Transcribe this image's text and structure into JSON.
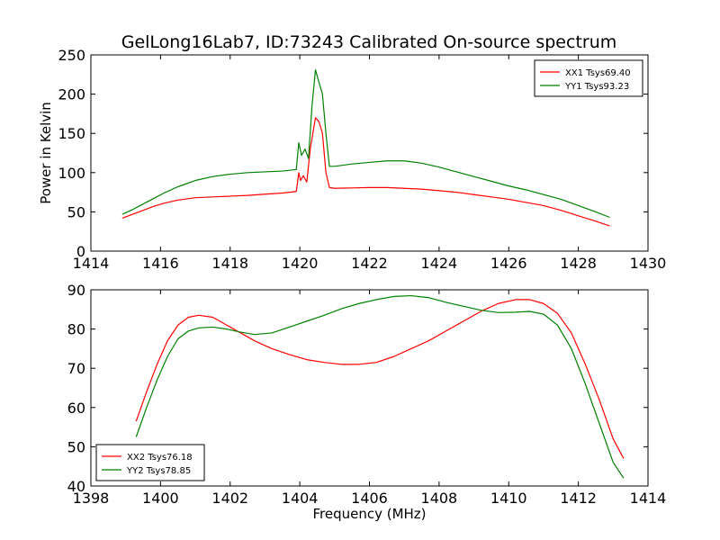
{
  "figure": {
    "title": "GelLong16Lab7, ID:73243 Calibrated On-source spectrum"
  },
  "chart_data": [
    {
      "type": "line",
      "title": "GelLong16Lab7, ID:73243 Calibrated On-source spectrum",
      "xlabel": "",
      "ylabel": "Power in Kelvin",
      "xlim": [
        1414,
        1430
      ],
      "ylim": [
        0,
        250
      ],
      "xticks": [
        "1414",
        "1416",
        "1418",
        "1420",
        "1422",
        "1424",
        "1426",
        "1428",
        "1430"
      ],
      "yticks": [
        "0",
        "50",
        "100",
        "150",
        "200",
        "250"
      ],
      "legend_position": "top-right",
      "grid": false,
      "series": [
        {
          "name": "XX1 Tsys69.40",
          "color": "#ff0000",
          "x": [
            1414.9,
            1415.2,
            1415.5,
            1415.8,
            1416.1,
            1416.5,
            1417.0,
            1417.5,
            1418.0,
            1418.5,
            1419.0,
            1419.5,
            1419.9,
            1419.97,
            1420.02,
            1420.1,
            1420.2,
            1420.3,
            1420.45,
            1420.55,
            1420.65,
            1420.75,
            1420.85,
            1421.0,
            1421.5,
            1422.0,
            1422.5,
            1423.0,
            1423.5,
            1424.0,
            1424.5,
            1425.0,
            1425.5,
            1426.0,
            1426.5,
            1427.0,
            1427.5,
            1428.0,
            1428.5,
            1428.9
          ],
          "values": [
            42,
            47,
            52,
            57,
            61,
            65,
            68,
            69,
            70,
            71,
            72.5,
            74,
            76,
            100,
            90,
            96,
            88,
            130,
            170,
            165,
            150,
            100,
            81,
            80,
            80.5,
            81,
            81,
            80,
            79,
            77,
            75,
            72,
            69,
            66,
            62,
            58,
            52,
            45,
            38,
            32
          ]
        },
        {
          "name": "YY1 Tsys93.23",
          "color": "#008000",
          "x": [
            1414.9,
            1415.2,
            1415.5,
            1415.8,
            1416.1,
            1416.5,
            1417.0,
            1417.5,
            1418.0,
            1418.5,
            1419.0,
            1419.5,
            1419.9,
            1419.97,
            1420.05,
            1420.15,
            1420.25,
            1420.35,
            1420.45,
            1420.55,
            1420.65,
            1420.75,
            1420.85,
            1421.0,
            1421.5,
            1422.0,
            1422.5,
            1423.0,
            1423.5,
            1424.0,
            1424.5,
            1425.0,
            1425.5,
            1426.0,
            1426.5,
            1427.0,
            1427.5,
            1428.0,
            1428.5,
            1428.9
          ],
          "values": [
            47,
            53,
            60,
            67,
            74,
            82,
            90,
            95,
            98,
            100,
            101,
            102,
            104,
            138,
            122,
            130,
            118,
            185,
            231,
            215,
            200,
            150,
            108,
            108,
            111,
            113,
            115,
            115,
            112,
            107,
            101,
            95,
            89,
            83,
            78,
            72,
            66,
            58,
            50,
            43
          ]
        }
      ]
    },
    {
      "type": "line",
      "title": "",
      "xlabel": "Frequency (MHz)",
      "ylabel": "",
      "xlim": [
        1398,
        1414
      ],
      "ylim": [
        40,
        90
      ],
      "xticks": [
        "1398",
        "1400",
        "1402",
        "1404",
        "1406",
        "1408",
        "1410",
        "1412",
        "1414"
      ],
      "yticks": [
        "40",
        "50",
        "60",
        "70",
        "80",
        "90"
      ],
      "legend_position": "bottom-left",
      "grid": false,
      "series": [
        {
          "name": "XX2 Tsys76.18",
          "color": "#ff0000",
          "x": [
            1399.3,
            1399.6,
            1399.9,
            1400.2,
            1400.5,
            1400.8,
            1401.1,
            1401.5,
            1401.9,
            1402.3,
            1402.7,
            1403.2,
            1403.7,
            1404.2,
            1404.7,
            1405.2,
            1405.7,
            1406.2,
            1406.7,
            1407.2,
            1407.7,
            1408.2,
            1408.7,
            1409.2,
            1409.7,
            1410.2,
            1410.6,
            1411.0,
            1411.4,
            1411.8,
            1412.2,
            1412.6,
            1413.0,
            1413.3
          ],
          "values": [
            56.5,
            64,
            71,
            77,
            81,
            83,
            83.5,
            83,
            81,
            79,
            77,
            75,
            73.5,
            72.2,
            71.5,
            71,
            71,
            71.5,
            73,
            75,
            77,
            79.5,
            82,
            84.5,
            86.5,
            87.5,
            87.5,
            86.5,
            84,
            79,
            71,
            62,
            52,
            47
          ]
        },
        {
          "name": "YY2 Tsys78.85",
          "color": "#008000",
          "x": [
            1399.3,
            1399.6,
            1399.9,
            1400.2,
            1400.5,
            1400.8,
            1401.1,
            1401.5,
            1401.9,
            1402.3,
            1402.7,
            1403.2,
            1403.7,
            1404.2,
            1404.7,
            1405.2,
            1405.7,
            1406.2,
            1406.7,
            1407.2,
            1407.7,
            1408.2,
            1408.7,
            1409.2,
            1409.7,
            1410.2,
            1410.6,
            1411.0,
            1411.4,
            1411.8,
            1412.2,
            1412.6,
            1413.0,
            1413.3
          ],
          "values": [
            52.5,
            60,
            67,
            73,
            77.5,
            79.5,
            80.3,
            80.5,
            80,
            79.2,
            78.6,
            79,
            80.5,
            82,
            83.5,
            85.2,
            86.5,
            87.5,
            88.3,
            88.5,
            88,
            86.8,
            85.8,
            84.8,
            84.2,
            84.3,
            84.5,
            83.8,
            81,
            75,
            66,
            56,
            46,
            42
          ]
        }
      ]
    }
  ]
}
